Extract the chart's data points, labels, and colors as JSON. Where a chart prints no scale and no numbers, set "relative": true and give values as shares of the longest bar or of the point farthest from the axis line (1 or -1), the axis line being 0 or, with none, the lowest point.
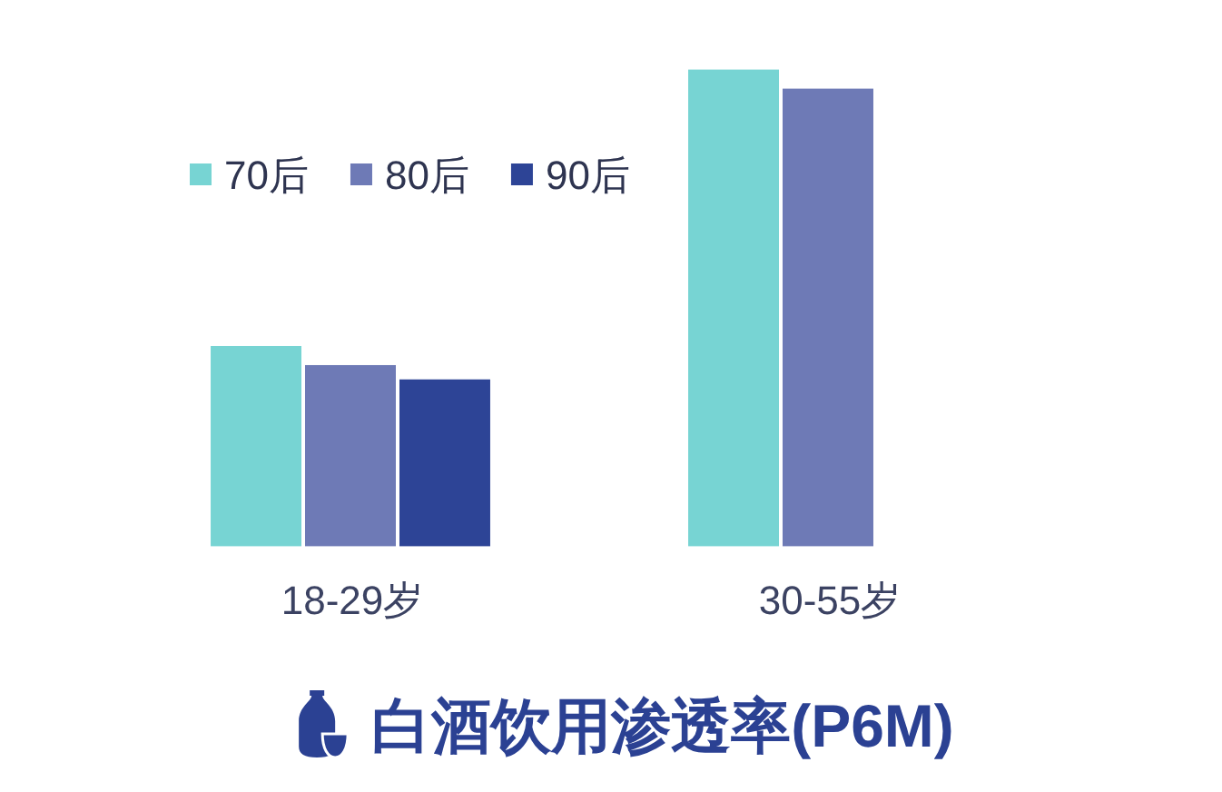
{
  "chart_data": {
    "type": "bar",
    "title": "白酒饮用渗透率(P6M)",
    "categories": [
      "18-29岁",
      "30-55岁"
    ],
    "relative": true,
    "legend": "top left",
    "series": [
      {
        "name": "70后",
        "color": "#77d4d3",
        "values": [
          0.42,
          1
        ]
      },
      {
        "name": "80后",
        "color": "#6e7ab6",
        "values": [
          0.38,
          0.96
        ]
      },
      {
        "name": "90后",
        "color": "#2d4496",
        "values": [
          0.35,
          null
        ]
      }
    ]
  }
}
